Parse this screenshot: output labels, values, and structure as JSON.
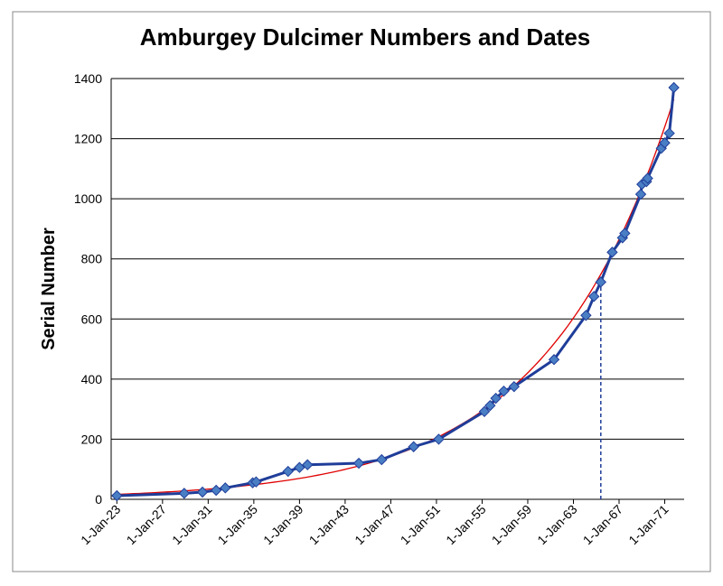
{
  "chart_data": {
    "type": "line",
    "title": "Amburgey Dulcimer Numbers and Dates",
    "y_label": "Serial Number",
    "x": [
      1923,
      1928.9,
      1930.5,
      1931.7,
      1932.5,
      1934.9,
      1935.2,
      1938,
      1939,
      1939.7,
      1944.2,
      1946.2,
      1949,
      1951.2,
      1955.2,
      1955.7,
      1956.2,
      1956.9,
      1957.8,
      1961.3,
      1964.1,
      1964.8,
      1965.4,
      1966.4,
      1967.3,
      1967.5,
      1968.9,
      1969,
      1969.4,
      1969.5,
      1970.7,
      1971,
      1971.4,
      1971.8
    ],
    "series": [
      {
        "color": "#1f3d99",
        "marker_color": "#4a7ec4",
        "values": [
          12,
          20,
          24,
          30,
          38,
          55,
          58,
          93,
          106,
          115,
          120,
          132,
          175,
          200,
          292,
          312,
          336,
          360,
          375,
          465,
          612,
          675,
          723,
          822,
          870,
          885,
          1015,
          1048,
          1057,
          1068,
          1168,
          1186,
          1218,
          1370
        ]
      }
    ],
    "trendline": {
      "type": "exponential",
      "color": "#e00000"
    },
    "reference_line": {
      "x": 1965.4,
      "y": 723,
      "color": "#1f3d99"
    },
    "xlim": [
      1922.5,
      1972.7
    ],
    "xticks": [
      {
        "value": 1923,
        "label": "1-Jan-23"
      },
      {
        "value": 1927,
        "label": "1-Jan-27"
      },
      {
        "value": 1931,
        "label": "1-Jan-31"
      },
      {
        "value": 1935,
        "label": "1-Jan-35"
      },
      {
        "value": 1939,
        "label": "1-Jan-39"
      },
      {
        "value": 1943,
        "label": "1-Jan-43"
      },
      {
        "value": 1947,
        "label": "1-Jan-47"
      },
      {
        "value": 1951,
        "label": "1-Jan-51"
      },
      {
        "value": 1955,
        "label": "1-Jan-55"
      },
      {
        "value": 1959,
        "label": "1-Jan-59"
      },
      {
        "value": 1963,
        "label": "1-Jan-63"
      },
      {
        "value": 1967,
        "label": "1-Jan-67"
      },
      {
        "value": 1971,
        "label": "1-Jan-71"
      }
    ],
    "ylim": [
      0,
      1400
    ],
    "yticks": [
      0,
      200,
      400,
      600,
      800,
      1000,
      1200,
      1400
    ],
    "grid": true
  }
}
